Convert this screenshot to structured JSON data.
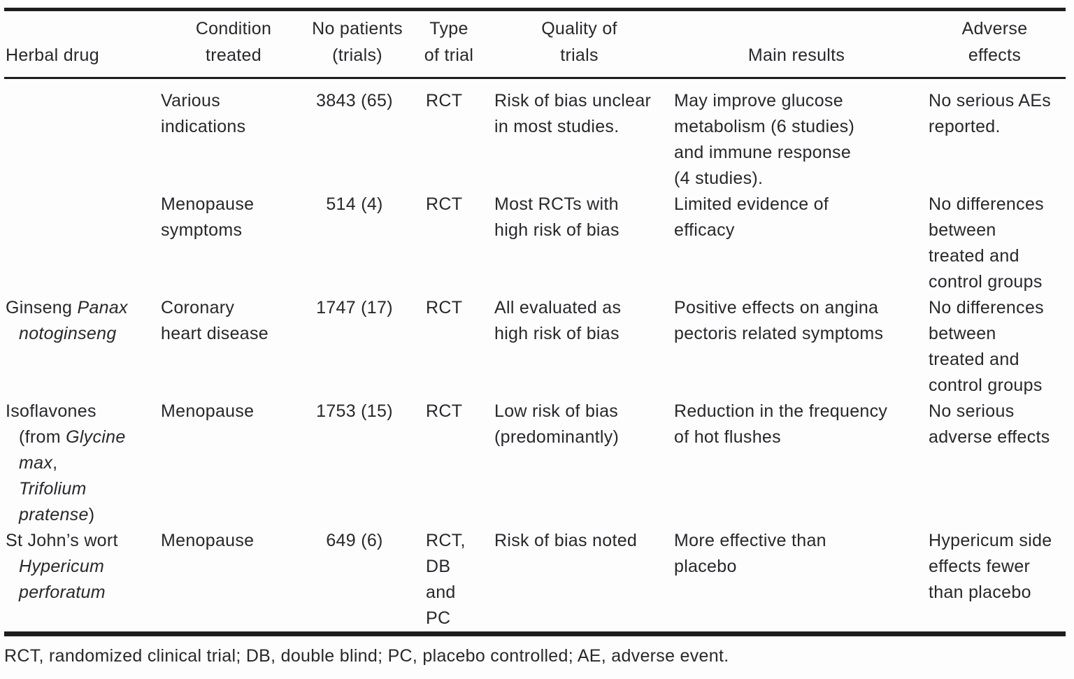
{
  "colors": {
    "background": "#fdfdfd",
    "text": "#28282c",
    "rule": "#1d1d1f"
  },
  "table": {
    "columns": [
      {
        "id": "herbal-drug",
        "lines": [
          "Herbal drug"
        ]
      },
      {
        "id": "condition-treated",
        "lines": [
          "Condition",
          "treated"
        ]
      },
      {
        "id": "no-patients",
        "lines": [
          "No patients",
          "(trials)"
        ]
      },
      {
        "id": "type-of-trial",
        "lines": [
          "Type",
          "of trial"
        ]
      },
      {
        "id": "quality-of-trials",
        "lines": [
          "Quality of",
          "trials"
        ]
      },
      {
        "id": "main-results",
        "lines": [
          "Main results"
        ]
      },
      {
        "id": "adverse-effects",
        "lines": [
          "Adverse",
          "effects"
        ]
      }
    ],
    "rows": [
      {
        "cells": [
          {
            "lines": []
          },
          {
            "lines": [
              "Various",
              "indications"
            ]
          },
          {
            "lines": [
              "3843 (65)"
            ]
          },
          {
            "lines": [
              "RCT"
            ]
          },
          {
            "lines": [
              "Risk of bias unclear",
              "in most studies."
            ]
          },
          {
            "lines": [
              "May improve glucose",
              "metabolism (6 studies)",
              "and immune response",
              "(4 studies)."
            ]
          },
          {
            "lines": [
              "No serious AEs",
              "reported."
            ]
          }
        ]
      },
      {
        "cells": [
          {
            "lines": []
          },
          {
            "lines": [
              "Menopause",
              "symptoms"
            ]
          },
          {
            "lines": [
              "514 (4)"
            ]
          },
          {
            "lines": [
              "RCT"
            ]
          },
          {
            "lines": [
              "Most RCTs with",
              "high risk of bias"
            ]
          },
          {
            "lines": [
              "Limited evidence of",
              "efficacy"
            ]
          },
          {
            "lines": [
              "No differences",
              "between",
              "treated and",
              "control groups"
            ]
          }
        ]
      },
      {
        "cells": [
          {
            "lines": [
              {
                "seg": [
                  {
                    "t": "Ginseng "
                  },
                  {
                    "t": "Panax",
                    "i": true
                  }
                ]
              },
              {
                "indent": true,
                "seg": [
                  {
                    "t": "notoginseng",
                    "i": true
                  }
                ]
              }
            ]
          },
          {
            "lines": [
              "Coronary",
              "heart disease"
            ]
          },
          {
            "lines": [
              "1747 (17)"
            ]
          },
          {
            "lines": [
              "RCT"
            ]
          },
          {
            "lines": [
              "All evaluated as",
              "high risk of bias"
            ]
          },
          {
            "lines": [
              "Positive effects on angina",
              "pectoris related symptoms"
            ]
          },
          {
            "lines": [
              "No differences",
              "between",
              "treated and",
              "control groups"
            ]
          }
        ]
      },
      {
        "cells": [
          {
            "lines": [
              "Isoflavones",
              {
                "indent": true,
                "seg": [
                  {
                    "t": "(from "
                  },
                  {
                    "t": "Glycine",
                    "i": true
                  }
                ]
              },
              {
                "indent": true,
                "seg": [
                  {
                    "t": "max",
                    "i": true
                  },
                  {
                    "t": ","
                  }
                ]
              },
              {
                "indent": true,
                "seg": [
                  {
                    "t": "Trifolium",
                    "i": true
                  }
                ]
              },
              {
                "indent": true,
                "seg": [
                  {
                    "t": "pratense",
                    "i": true
                  },
                  {
                    "t": ")"
                  }
                ]
              }
            ]
          },
          {
            "lines": [
              "Menopause"
            ]
          },
          {
            "lines": [
              "1753 (15)"
            ]
          },
          {
            "lines": [
              "RCT"
            ]
          },
          {
            "lines": [
              "Low risk of bias",
              "(predominantly)"
            ]
          },
          {
            "lines": [
              "Reduction in the frequency",
              "of hot flushes"
            ]
          },
          {
            "lines": [
              "No serious",
              "adverse effects"
            ]
          }
        ]
      },
      {
        "cells": [
          {
            "lines": [
              "St John’s wort",
              {
                "indent": true,
                "seg": [
                  {
                    "t": "Hypericum",
                    "i": true
                  }
                ]
              },
              {
                "indent": true,
                "seg": [
                  {
                    "t": "perforatum",
                    "i": true
                  }
                ]
              }
            ]
          },
          {
            "lines": [
              "Menopause"
            ]
          },
          {
            "lines": [
              "649 (6)"
            ]
          },
          {
            "lines": [
              "RCT,",
              "DB",
              "and",
              "PC"
            ]
          },
          {
            "lines": [
              "Risk of bias noted"
            ]
          },
          {
            "lines": [
              "More effective than",
              "placebo"
            ]
          },
          {
            "lines": [
              "Hypericum side",
              "effects fewer",
              "than placebo"
            ]
          }
        ]
      }
    ],
    "footnote": "RCT, randomized clinical trial; DB, double blind; PC, placebo controlled; AE, adverse event."
  }
}
